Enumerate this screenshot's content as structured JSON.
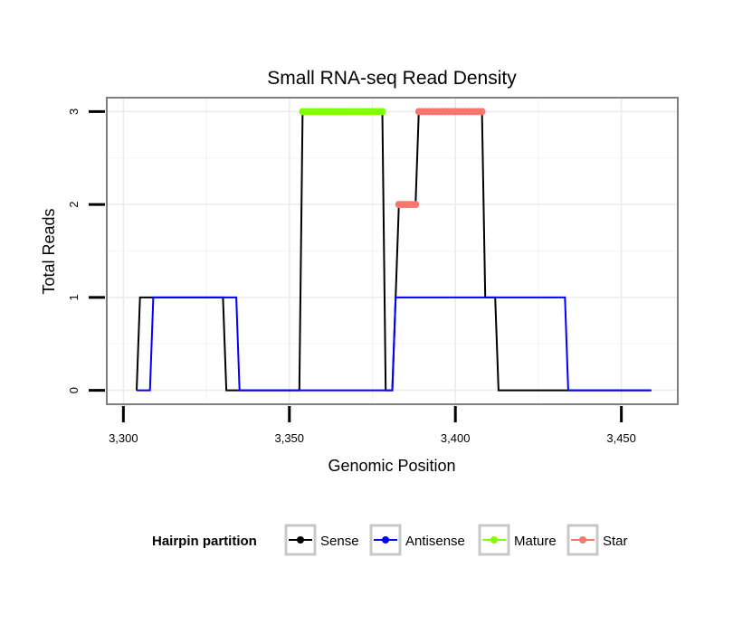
{
  "chart_data": {
    "type": "line",
    "title": "Small RNA-seq Read Density",
    "xlabel": "Genomic Position",
    "ylabel": "Total Reads",
    "xlim": [
      3295,
      3467
    ],
    "ylim": [
      -0.15,
      3.15
    ],
    "x_ticks": [
      3300,
      3350,
      3400,
      3450
    ],
    "x_tick_labels": [
      "3,300",
      "3,350",
      "3,400",
      "3,450"
    ],
    "y_ticks": [
      0,
      1,
      2,
      3
    ],
    "y_tick_labels": [
      "0",
      "1",
      "2",
      "3"
    ],
    "grid": true,
    "legend": {
      "title": "Hairpin partition",
      "position": "bottom",
      "entries": [
        "Sense",
        "Antisense",
        "Mature",
        "Star"
      ]
    },
    "series": [
      {
        "name": "Sense",
        "color": "#000000",
        "marker": "line",
        "x": [
          3304,
          3305,
          3330,
          3331,
          3353,
          3354,
          3378,
          3379,
          3381,
          3382,
          3383,
          3388,
          3389,
          3408,
          3409,
          3412,
          3413,
          3459
        ],
        "y": [
          0,
          1,
          1,
          0,
          0,
          3,
          3,
          0,
          0,
          1,
          2,
          2,
          3,
          3,
          1,
          1,
          0,
          0
        ]
      },
      {
        "name": "Antisense",
        "color": "#0000ff",
        "marker": "line",
        "x": [
          3304,
          3308,
          3309,
          3334,
          3335,
          3380,
          3381,
          3382,
          3433,
          3434,
          3459
        ],
        "y": [
          0,
          0,
          1,
          1,
          0,
          0,
          0,
          1,
          1,
          0,
          0
        ]
      },
      {
        "name": "Mature",
        "color": "#7fff00",
        "marker": "points",
        "x": [
          3354,
          3355,
          3356,
          3357,
          3358,
          3359,
          3360,
          3361,
          3362,
          3363,
          3364,
          3365,
          3366,
          3367,
          3368,
          3369,
          3370,
          3371,
          3372,
          3373,
          3374,
          3375,
          3376,
          3377,
          3378
        ],
        "y": [
          3,
          3,
          3,
          3,
          3,
          3,
          3,
          3,
          3,
          3,
          3,
          3,
          3,
          3,
          3,
          3,
          3,
          3,
          3,
          3,
          3,
          3,
          3,
          3,
          3
        ]
      },
      {
        "name": "Star",
        "color": "#f8766d",
        "marker": "points",
        "x": [
          3383,
          3384,
          3385,
          3386,
          3387,
          3388,
          3389,
          3390,
          3391,
          3392,
          3393,
          3394,
          3395,
          3396,
          3397,
          3398,
          3399,
          3400,
          3401,
          3402,
          3403,
          3404,
          3405,
          3406,
          3407,
          3408
        ],
        "y": [
          2,
          2,
          2,
          2,
          2,
          2,
          3,
          3,
          3,
          3,
          3,
          3,
          3,
          3,
          3,
          3,
          3,
          3,
          3,
          3,
          3,
          3,
          3,
          3,
          3,
          3
        ]
      }
    ]
  }
}
